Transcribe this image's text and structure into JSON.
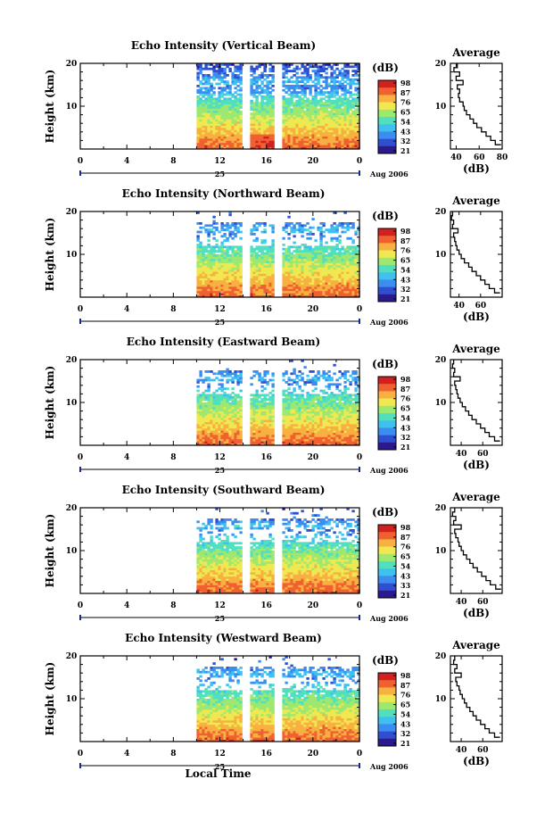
{
  "figure": {
    "xlabel": "Local Time",
    "month_label": "Aug 2006",
    "day_label": "25",
    "x_ticks": [
      "0",
      "4",
      "8",
      "12",
      "16",
      "20",
      "0"
    ],
    "y_ticks": [
      "20",
      "10"
    ],
    "ylabel": "Height (km)",
    "colorbar_unit": "(dB)",
    "avg_title": "Average",
    "avg_xlabel": "(dB)"
  },
  "colors": {
    "scale": [
      "#2a1a8c",
      "#2f4fd0",
      "#3b8ef0",
      "#41c0f0",
      "#50e0c0",
      "#9ce870",
      "#f0e850",
      "#f8b040",
      "#f06030",
      "#d02020"
    ]
  },
  "chart_data": [
    {
      "type": "heatmap",
      "title": "Echo Intensity (Vertical Beam)",
      "xlabel": "Local Time",
      "ylabel": "Height (km)",
      "x_range": [
        0,
        24
      ],
      "y_range": [
        0,
        20
      ],
      "data_start_hour": 10,
      "gaps_hours": [
        [
          13.9,
          14.4
        ],
        [
          16.6,
          17.2
        ]
      ],
      "colorbar": {
        "label": "(dB)",
        "ticks": [
          "98",
          "87",
          "76",
          "65",
          "54",
          "43",
          "32",
          "21"
        ]
      },
      "profile": {
        "title": "Average",
        "xlabel": "(dB)",
        "x_ticks": [
          "40",
          "60",
          "80"
        ],
        "xlim": [
          35,
          80
        ],
        "height_km": [
          1,
          2,
          3,
          4,
          5,
          6,
          7,
          8,
          9,
          10,
          11,
          12,
          13,
          14,
          15,
          16,
          17,
          18,
          19,
          20
        ],
        "value_db": [
          79,
          74,
          70,
          66,
          62,
          58,
          55,
          52,
          49,
          47,
          46,
          43,
          42,
          43,
          41,
          46,
          40,
          43,
          38,
          41
        ]
      }
    },
    {
      "type": "heatmap",
      "title": "Echo Intensity (Northward Beam)",
      "xlabel": "Local Time",
      "ylabel": "Height (km)",
      "x_range": [
        0,
        24
      ],
      "y_range": [
        0,
        20
      ],
      "data_start_hour": 10,
      "gaps_hours": [
        [
          13.9,
          14.4
        ],
        [
          16.6,
          17.2
        ]
      ],
      "colorbar": {
        "label": "(dB)",
        "ticks": [
          "98",
          "87",
          "76",
          "65",
          "54",
          "43",
          "32",
          "21"
        ]
      },
      "profile": {
        "title": "Average",
        "xlabel": "(dB)",
        "x_ticks": [
          "40",
          "60"
        ],
        "xlim": [
          32,
          80
        ],
        "height_km": [
          1,
          2,
          3,
          4,
          5,
          6,
          7,
          8,
          9,
          10,
          11,
          12,
          13,
          14,
          15,
          16,
          17,
          18,
          19,
          20
        ],
        "value_db": [
          78,
          73,
          68,
          64,
          60,
          56,
          52,
          49,
          45,
          42,
          40,
          38,
          37,
          36,
          35,
          39,
          34,
          35,
          33,
          34
        ]
      }
    },
    {
      "type": "heatmap",
      "title": "Echo Intensity (Eastward Beam)",
      "xlabel": "Local Time",
      "ylabel": "Height (km)",
      "x_range": [
        0,
        24
      ],
      "y_range": [
        0,
        20
      ],
      "data_start_hour": 10,
      "gaps_hours": [
        [
          13.9,
          14.4
        ],
        [
          16.6,
          17.2
        ]
      ],
      "colorbar": {
        "label": "(dB)",
        "ticks": [
          "98",
          "87",
          "76",
          "65",
          "54",
          "43",
          "32",
          "21"
        ]
      },
      "profile": {
        "title": "Average",
        "xlabel": "(dB)",
        "x_ticks": [
          "40",
          "60"
        ],
        "xlim": [
          30,
          78
        ],
        "height_km": [
          1,
          2,
          3,
          4,
          5,
          6,
          7,
          8,
          9,
          10,
          11,
          12,
          13,
          14,
          15,
          16,
          17,
          18,
          19,
          20
        ],
        "value_db": [
          76,
          71,
          66,
          62,
          58,
          54,
          50,
          47,
          44,
          41,
          39,
          37,
          36,
          35,
          34,
          39,
          33,
          34,
          32,
          33
        ]
      }
    },
    {
      "type": "heatmap",
      "title": "Echo Intensity (Southward Beam)",
      "xlabel": "Local Time",
      "ylabel": "Height (km)",
      "x_range": [
        0,
        24
      ],
      "y_range": [
        0,
        20
      ],
      "data_start_hour": 10,
      "gaps_hours": [
        [
          13.9,
          14.4
        ],
        [
          16.6,
          17.2
        ]
      ],
      "colorbar": {
        "label": "(dB)",
        "ticks": [
          "98",
          "87",
          "76",
          "65",
          "54",
          "43",
          "33",
          "21"
        ]
      },
      "profile": {
        "title": "Average",
        "xlabel": "(dB)",
        "x_ticks": [
          "40",
          "60"
        ],
        "xlim": [
          30,
          78
        ],
        "height_km": [
          1,
          2,
          3,
          4,
          5,
          6,
          7,
          8,
          9,
          10,
          11,
          12,
          13,
          14,
          15,
          16,
          17,
          18,
          19,
          20
        ],
        "value_db": [
          77,
          72,
          67,
          63,
          59,
          55,
          51,
          48,
          45,
          42,
          40,
          38,
          37,
          35,
          34,
          40,
          33,
          35,
          32,
          34
        ]
      }
    },
    {
      "type": "heatmap",
      "title": "Echo Intensity (Westward Beam)",
      "xlabel": "Local Time",
      "ylabel": "Height (km)",
      "x_range": [
        0,
        24
      ],
      "y_range": [
        0,
        20
      ],
      "data_start_hour": 10,
      "gaps_hours": [
        [
          13.9,
          14.4
        ],
        [
          16.6,
          17.2
        ]
      ],
      "colorbar": {
        "label": "(dB)",
        "ticks": [
          "98",
          "87",
          "76",
          "65",
          "54",
          "43",
          "32",
          "21"
        ]
      },
      "profile": {
        "title": "Average",
        "xlabel": "(dB)",
        "x_ticks": [
          "40",
          "60"
        ],
        "xlim": [
          30,
          78
        ],
        "height_km": [
          1,
          2,
          3,
          4,
          5,
          6,
          7,
          8,
          9,
          10,
          11,
          12,
          13,
          14,
          15,
          16,
          17,
          18,
          19,
          20
        ],
        "value_db": [
          76,
          71,
          66,
          62,
          58,
          54,
          51,
          48,
          45,
          43,
          41,
          39,
          38,
          36,
          35,
          40,
          34,
          36,
          33,
          34
        ]
      }
    }
  ]
}
